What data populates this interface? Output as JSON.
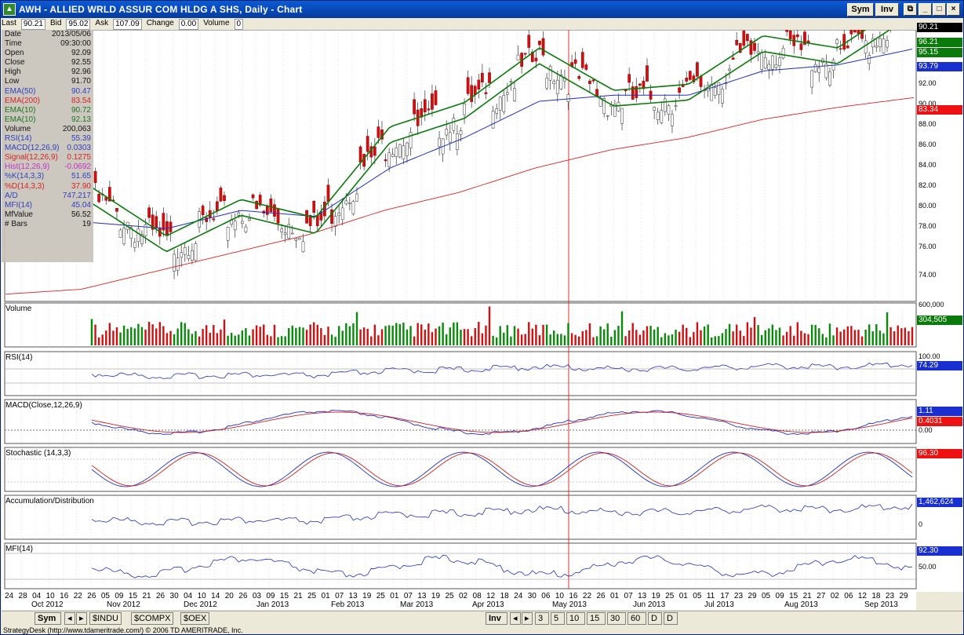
{
  "window": {
    "title": "AWH - ALLIED WRLD ASSUR COM HLDG A SHS, Daily - Chart",
    "sym_button": "Sym",
    "inv_button": "Inv"
  },
  "quote_bar": {
    "last_label": "Last",
    "last": "90.21",
    "bid_label": "Bid",
    "bid": "95.02",
    "ask_label": "Ask",
    "ask": "107.09",
    "change_label": "Change",
    "change": "0.00",
    "volume_label": "Volume",
    "volume": "0"
  },
  "data_panel": [
    {
      "label": "Date",
      "value": "2013/05/06",
      "color": "#000000"
    },
    {
      "label": "Time",
      "value": "09:30:00",
      "color": "#000000"
    },
    {
      "label": "Open",
      "value": "92.09",
      "color": "#000000"
    },
    {
      "label": "Close",
      "value": "92.55",
      "color": "#000000"
    },
    {
      "label": "High",
      "value": "92.96",
      "color": "#000000"
    },
    {
      "label": "Low",
      "value": "91.70",
      "color": "#000000"
    },
    {
      "label": "EMA(50)",
      "value": "90.47",
      "color": "#1f2fb8"
    },
    {
      "label": "EMA(200)",
      "value": "83.54",
      "color": "#d01010"
    },
    {
      "label": "EMA(10)",
      "value": "90.72",
      "color": "#0a6a0a"
    },
    {
      "label": "EMA(10)",
      "value": "92.13",
      "color": "#0a6a0a"
    },
    {
      "label": "Volume",
      "value": "200,063",
      "color": "#000000"
    },
    {
      "label": "RSI(14)",
      "value": "55.39",
      "color": "#1f2fb8"
    },
    {
      "label": "MACD(12,26,9)",
      "value": "0.0303",
      "color": "#1f2fb8"
    },
    {
      "label": "Signal(12,26,9)",
      "value": "0.1275",
      "color": "#d01010"
    },
    {
      "label": "Hist(12,26,9)",
      "value": "-0.0692",
      "color": "#c020c0"
    },
    {
      "label": "%K(14,3,3)",
      "value": "51.65",
      "color": "#1f2fb8"
    },
    {
      "label": "%D(14,3,3)",
      "value": "37.90",
      "color": "#d01010"
    },
    {
      "label": "A/D",
      "value": "747,217",
      "color": "#1f2fb8"
    },
    {
      "label": "MFI(14)",
      "value": "45.04",
      "color": "#1f2fb8"
    },
    {
      "label": "MfValue",
      "value": "56.52",
      "color": "#000000"
    },
    {
      "label": "# Bars",
      "value": "19",
      "color": "#000000"
    }
  ],
  "price_axis": [
    "92.00",
    "90.00",
    "88.00",
    "86.00",
    "84.00",
    "82.00",
    "80.00",
    "78.00",
    "76.00",
    "74.00"
  ],
  "price_tags": [
    {
      "value": "90.21",
      "bg": "#000000",
      "fg": "#ffffff"
    },
    {
      "value": "96.21",
      "bg": "#0a7a0a",
      "fg": "#ffffff"
    },
    {
      "value": "95.15",
      "bg": "#0a7a0a",
      "fg": "#ffffff"
    },
    {
      "value": "93.79",
      "bg": "#1a2fd0",
      "fg": "#ffffff"
    },
    {
      "value": "83.34",
      "bg": "#ee1111",
      "fg": "#ffffff"
    }
  ],
  "panels": {
    "volume": {
      "label": "Volume",
      "axis_top": "600,000",
      "tag": "304,505"
    },
    "rsi": {
      "label": "RSI(14)",
      "axis_top": "100.00",
      "tag": "74.29"
    },
    "macd": {
      "label": "MACD(Close,12,26,9)",
      "tag1": "1.11",
      "tag2": "0.4031",
      "axis_bottom": "0.00"
    },
    "stochastic": {
      "label": "Stochastic (14,3,3)",
      "tag": "96.30"
    },
    "ad": {
      "label": "Accumulation/Distribution",
      "tag": "1,462,624",
      "axis_bottom": "0"
    },
    "mfi": {
      "label": "MFI(14)",
      "tag": "92.30",
      "axis_mid": "50.00"
    }
  },
  "date_axis": {
    "days": [
      "24",
      "28",
      "04",
      "10",
      "16",
      "22",
      "26",
      "05",
      "09",
      "15",
      "21",
      "26",
      "30",
      "04",
      "10",
      "14",
      "20",
      "26",
      "03",
      "09",
      "15",
      "21",
      "25",
      "01",
      "07",
      "13",
      "19",
      "25",
      "01",
      "07",
      "13",
      "19",
      "25",
      "02",
      "08",
      "12",
      "18",
      "24",
      "30",
      "06",
      "10",
      "16",
      "22",
      "26",
      "01",
      "07",
      "13",
      "19",
      "25",
      "01",
      "05",
      "11",
      "17",
      "23",
      "29",
      "05",
      "09",
      "15",
      "21",
      "27",
      "02",
      "06",
      "12",
      "18",
      "23",
      "29"
    ],
    "months": [
      "Oct 2012",
      "Nov 2012",
      "Dec 2012",
      "Jan 2013",
      "Feb 2013",
      "Mar 2013",
      "Apr 2013",
      "May 2013",
      "Jun 2013",
      "Jul 2013",
      "Aug 2013",
      "Sep 2013"
    ]
  },
  "bottom_tabs": {
    "sym_button": "Sym",
    "symbols": [
      "$INDU",
      "$COMPX",
      "$OEX"
    ],
    "inv_button": "Inv",
    "intervals": [
      "3",
      "5",
      "10",
      "15",
      "30",
      "60",
      "D",
      "D"
    ]
  },
  "status": "StrategyDesk (http://www.tdameritrade.com/) © 2006 TD AMERITRADE, Inc.",
  "chart_data": {
    "type": "line",
    "title": "AWH - ALLIED WRLD ASSUR COM HLDG A SHS, Daily",
    "x": [
      "Oct 2012",
      "Nov 2012",
      "Dec 2012",
      "Jan 2013",
      "Feb 2013",
      "Mar 2013",
      "Apr 2013",
      "May 2013",
      "Jun 2013",
      "Jul 2013",
      "Aug 2013",
      "Sep 2013"
    ],
    "series": [
      {
        "name": "Close",
        "values": [
          81.5,
          77.5,
          80.5,
          79.0,
          86.5,
          88.5,
          93.0,
          89.5,
          90.0,
          94.0,
          93.0,
          97.0
        ]
      },
      {
        "name": "EMA(200)",
        "values": [
          74.0,
          75.5,
          77.0,
          78.5,
          80.5,
          82.0,
          84.0,
          85.5,
          86.5,
          88.0,
          89.0,
          89.8
        ]
      },
      {
        "name": "EMA(50)",
        "values": [
          79.5,
          79.0,
          80.5,
          80.0,
          84.0,
          86.5,
          89.5,
          90.0,
          90.0,
          92.0,
          92.5,
          93.8
        ]
      }
    ],
    "ylim": [
      73,
      95
    ]
  }
}
